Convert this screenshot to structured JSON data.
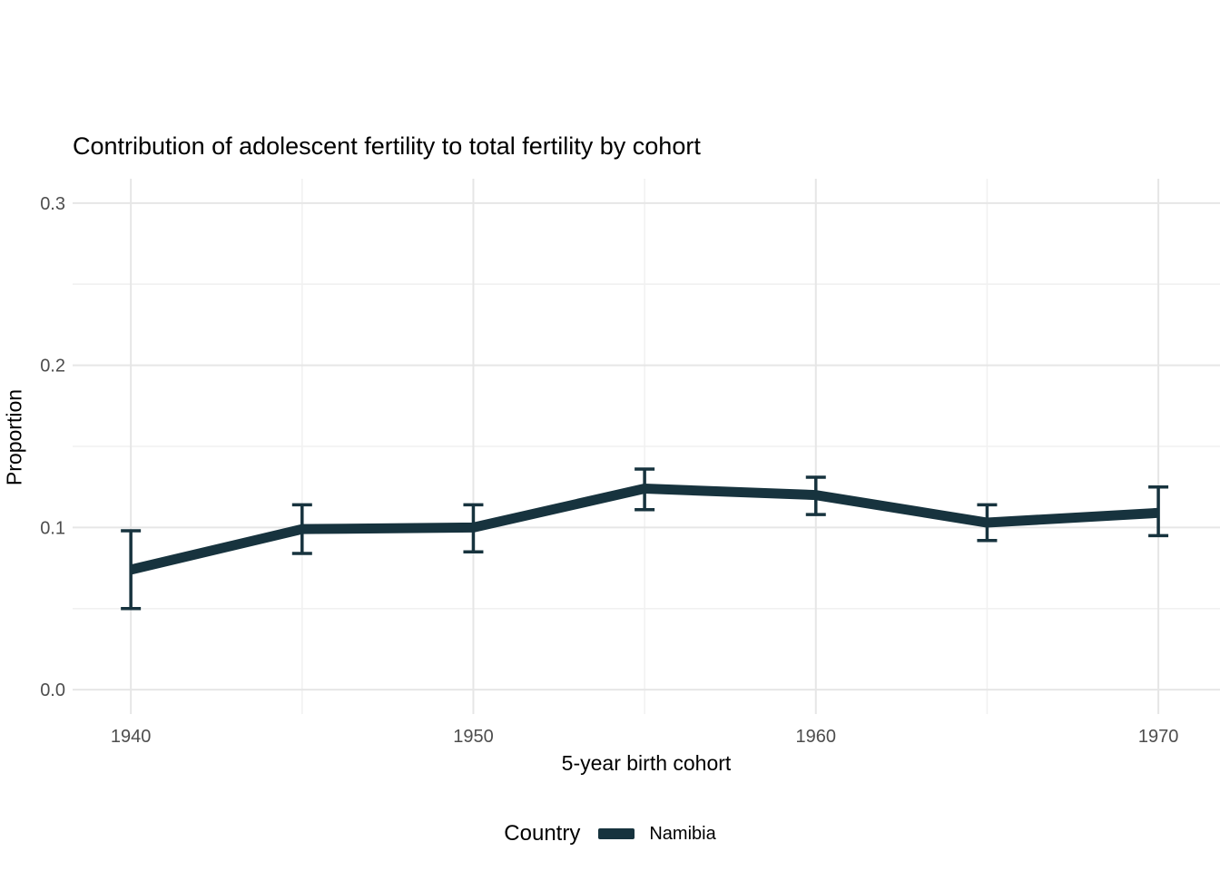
{
  "chart_data": {
    "type": "line",
    "title": "Contribution of adolescent fertility to total fertility by cohort",
    "xlabel": "5-year birth cohort",
    "ylabel": "Proportion",
    "legend_title": "Country",
    "legend_position": "bottom",
    "grid": "on",
    "x": [
      1940,
      1945,
      1950,
      1955,
      1960,
      1965,
      1970
    ],
    "series": [
      {
        "name": "Namibia",
        "values": [
          0.074,
          0.099,
          0.1,
          0.124,
          0.12,
          0.103,
          0.109
        ],
        "ci_low": [
          0.05,
          0.084,
          0.085,
          0.111,
          0.108,
          0.092,
          0.095
        ],
        "ci_high": [
          0.098,
          0.114,
          0.114,
          0.136,
          0.131,
          0.114,
          0.125
        ],
        "color": "#17333e"
      }
    ],
    "xlim": [
      1938.3,
      1971.8
    ],
    "ylim": [
      -0.015,
      0.315
    ],
    "x_ticks_major": [
      1940,
      1950,
      1960,
      1970
    ],
    "x_tick_labels": [
      "1940",
      "1950",
      "1960",
      "1970"
    ],
    "x_ticks_minor": [
      1945,
      1955,
      1965
    ],
    "y_ticks_major": [
      0.0,
      0.1,
      0.2,
      0.3
    ],
    "y_tick_labels": [
      "0.0",
      "0.1",
      "0.2",
      "0.3"
    ],
    "y_ticks_minor": [
      0.05,
      0.15,
      0.25
    ]
  },
  "colors": {
    "background": "#ffffff",
    "grid_major": "#e6e6e6",
    "grid_minor": "#f1f1f1",
    "tick_label": "#4d4d4d",
    "line": "#17333e",
    "text": "#000000"
  }
}
